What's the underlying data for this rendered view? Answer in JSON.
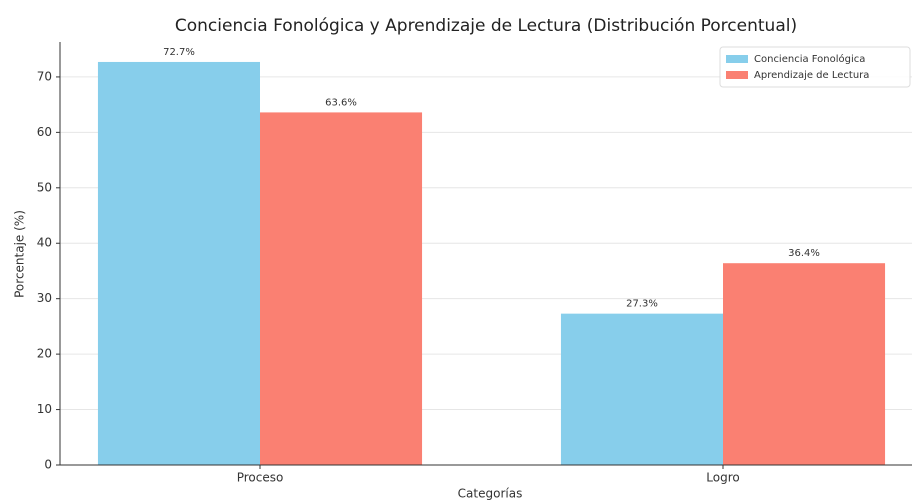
{
  "chart_data": {
    "type": "bar",
    "title": "Conciencia Fonológica y Aprendizaje de Lectura (Distribución Porcentual)",
    "x_label": "Categorías",
    "y_label": "Porcentaje (%)",
    "categories": [
      "Proceso",
      "Logro"
    ],
    "series": [
      {
        "name": "Conciencia Fonológica",
        "color": "#87CEEB",
        "values": [
          72.7,
          27.3
        ],
        "value_labels": [
          "72.7%",
          "27.3%"
        ]
      },
      {
        "name": "Aprendizaje de Lectura",
        "color": "#FA8072",
        "values": [
          63.6,
          36.4
        ],
        "value_labels": [
          "63.6%",
          "36.4%"
        ]
      }
    ],
    "ylim": [
      0,
      76.3
    ],
    "yticks": [
      0,
      10,
      20,
      30,
      40,
      50,
      60,
      70
    ],
    "grid": true,
    "legend": "upper right"
  }
}
